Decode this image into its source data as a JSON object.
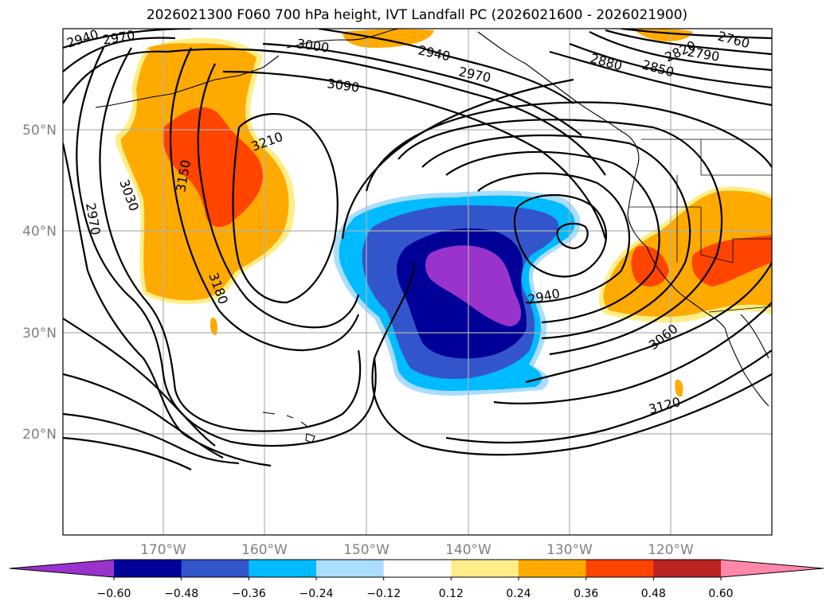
{
  "title": "2026021300 F060 700 hPa height, IVT Landfall PC (2026021600 - 2026021900)",
  "lat_labels": [
    "50°N",
    "40°N",
    "30°N",
    "20°N"
  ],
  "lon_labels": [
    "170°W",
    "160°W",
    "150°W",
    "140°W",
    "130°W",
    "120°W"
  ],
  "contour_labels": [
    "2940",
    "2970",
    "3000",
    "2940",
    "2970",
    "3090",
    "2880",
    "2850",
    "2790",
    "2820",
    "2760",
    "3210",
    "3150",
    "3030",
    "2970",
    "3180",
    "2940",
    "3060",
    "3120"
  ],
  "colorbar": {
    "ticks": [
      "−0.60",
      "−0.48",
      "−0.36",
      "−0.24",
      "−0.12",
      "0.12",
      "0.24",
      "0.36",
      "0.48",
      "0.60"
    ],
    "colors": [
      "#9933cc",
      "#000099",
      "#3355cc",
      "#00bbff",
      "#aaddff",
      "#ffffff",
      "#ffee88",
      "#ffaa00",
      "#ff4400",
      "#bb2222",
      "#ff88aa"
    ]
  },
  "chart_data": {
    "type": "heatmap",
    "title": "2026021300 F060 700 hPa height, IVT Landfall PC (2026021600 - 2026021900)",
    "x_range_deg": [
      -180,
      -110
    ],
    "y_range_deg": [
      10,
      60
    ],
    "levels": [
      -0.6,
      -0.48,
      -0.36,
      -0.24,
      -0.12,
      0.12,
      0.24,
      0.36,
      0.48,
      0.6
    ],
    "height_contours_m": [
      2760,
      2790,
      2820,
      2850,
      2880,
      2940,
      2970,
      3000,
      3030,
      3060,
      3090,
      3120,
      3150,
      3180,
      3210
    ]
  }
}
